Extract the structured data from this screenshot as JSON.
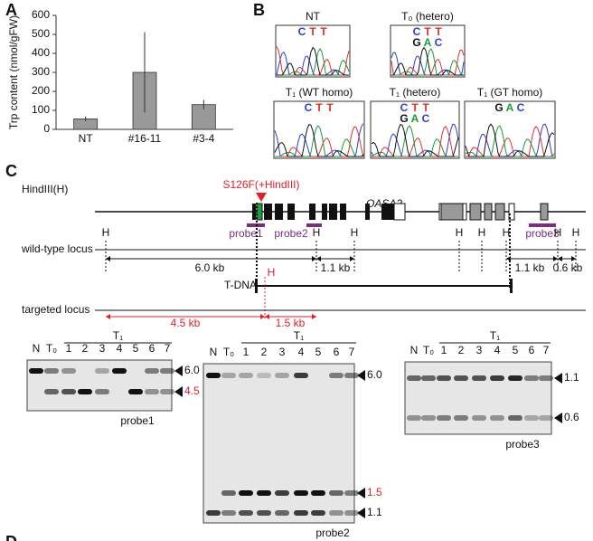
{
  "chart_data": {
    "type": "bar",
    "panel": "A",
    "y_label": "Trp content (nmol/gFW)",
    "categories": [
      "NT",
      "#16-11",
      "#3-4"
    ],
    "values": [
      55,
      300,
      130
    ],
    "errors": [
      12,
      212,
      25
    ],
    "color": "#999999",
    "ylim": [
      0,
      600
    ],
    "yticks": [
      0,
      100,
      200,
      300,
      400,
      500,
      600
    ]
  },
  "panels": {
    "B": {
      "label": "B",
      "traces": [
        {
          "title": "NT",
          "bases": [
            [
              "C",
              "T",
              "T"
            ]
          ]
        },
        {
          "title": "T₀ (hetero)",
          "bases": [
            [
              "C",
              "T",
              "T"
            ],
            [
              "G",
              "A",
              "C"
            ]
          ]
        },
        {
          "title": "T₁ (WT homo)",
          "bases": [
            [
              "C",
              "T",
              "T"
            ]
          ]
        },
        {
          "title": "T₁ (hetero)",
          "bases": [
            [
              "C",
              "T",
              "T"
            ],
            [
              "G",
              "A",
              "C"
            ]
          ]
        },
        {
          "title": "T₁ (GT homo)",
          "bases": [
            [
              "G",
              "A",
              "C"
            ]
          ]
        }
      ]
    },
    "C": {
      "label": "C",
      "enzyme": "HindIII(H)",
      "mutation": "S126F(+HindIII)",
      "gene": "OASA2",
      "probes": [
        "probe1",
        "probe2",
        "probe3"
      ],
      "wt_label": "wild-type locus",
      "site": "H",
      "fragments_wt": [
        "6.0 kb",
        "1.1 kb",
        "1.1 kb",
        "0.6 kb"
      ],
      "tdna": "T-DNA",
      "tg_label": "targeted locus",
      "fragments_tg": [
        "4.5 kb",
        "1.5 kb"
      ],
      "blots": [
        {
          "lanes": [
            "N",
            "T₀",
            "1",
            "2",
            "3",
            "4",
            "5",
            "6",
            "7"
          ],
          "group": "T₁",
          "sizes": [
            "6.0",
            "4.5"
          ],
          "probe": "probe1"
        },
        {
          "lanes": [
            "N",
            "T₀",
            "1",
            "2",
            "3",
            "4",
            "5",
            "6",
            "7"
          ],
          "group": "T₁",
          "sizes": [
            "6.0",
            "1.5",
            "1.1"
          ],
          "probe": "probe2"
        },
        {
          "lanes": [
            "N",
            "T₀",
            "1",
            "2",
            "3",
            "4",
            "5",
            "6",
            "7"
          ],
          "group": "T₁",
          "sizes": [
            "1.1",
            "0.6"
          ],
          "probe": "probe3"
        }
      ]
    },
    "D": {
      "label": "D"
    }
  }
}
